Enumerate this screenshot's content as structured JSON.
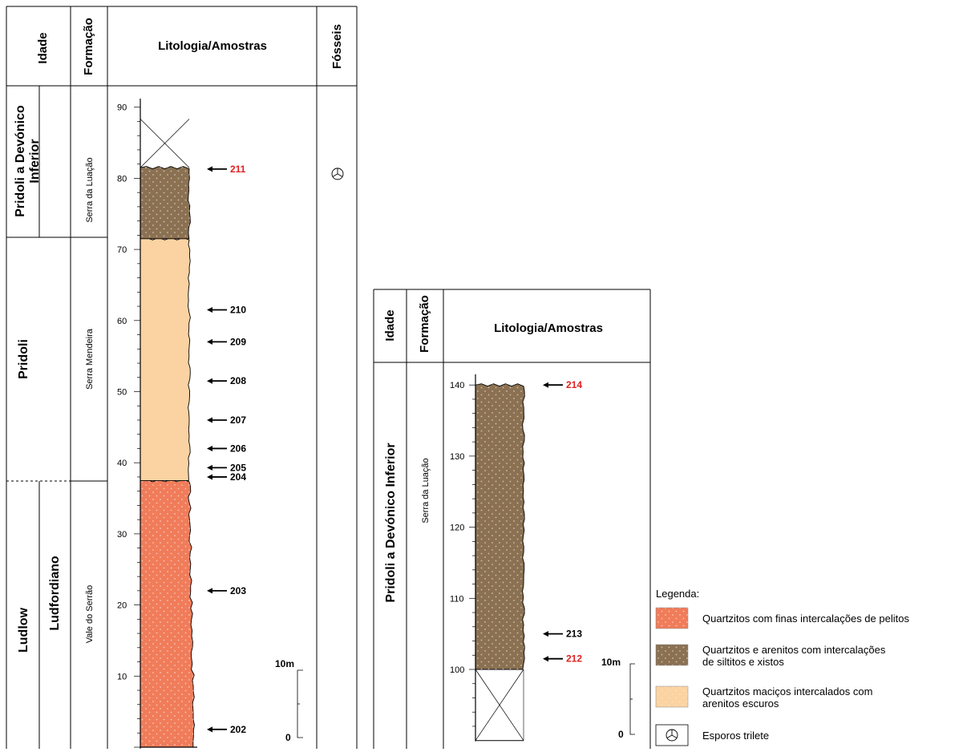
{
  "colors": {
    "quartzite_pelite": "#f07c5a",
    "quartzite_siltite": "#8b7152",
    "quartzite_massive": "#fbd3a2",
    "sample_black": "#000000",
    "sample_red": "#e02020"
  },
  "left_column": {
    "headers": {
      "idade": "Idade",
      "formacao": "Formação",
      "litologia": "Litologia/Amostras",
      "fosseis": "Fósseis"
    },
    "ages": [
      {
        "label": "Pridoli a Devónico Inferior",
        "from": 71.5,
        "to": 92
      },
      {
        "label": "Pridoli",
        "from": 37.5,
        "to": 71.5
      },
      {
        "label": "Ludlow",
        "from": -3,
        "to": 37.5,
        "sub": "Ludfordiano"
      }
    ],
    "formations": [
      {
        "label": "Serra da Luação",
        "from": 71.5,
        "to": 92
      },
      {
        "label": "Serra Mendeira",
        "from": 37.5,
        "to": 71.5
      },
      {
        "label": "Vale do Serrão",
        "from": -3,
        "to": 37.5
      }
    ],
    "layers": [
      {
        "lith": "quartzite_pelite",
        "from": 0,
        "to": 37.5
      },
      {
        "lith": "quartzite_massive",
        "from": 37.5,
        "to": 71.5
      },
      {
        "lith": "quartzite_siltite",
        "from": 71.5,
        "to": 81.5
      }
    ],
    "no_exposure": {
      "from": 81.5,
      "to": 88
    },
    "ticks": [
      10,
      20,
      30,
      40,
      50,
      60,
      70,
      80,
      90
    ],
    "samples": [
      {
        "id": "202",
        "m": 2.5,
        "color": "black"
      },
      {
        "id": "203",
        "m": 22,
        "color": "black"
      },
      {
        "id": "204",
        "m": 38,
        "color": "black"
      },
      {
        "id": "205",
        "m": 39.3,
        "color": "black"
      },
      {
        "id": "206",
        "m": 42,
        "color": "black"
      },
      {
        "id": "207",
        "m": 46,
        "color": "black"
      },
      {
        "id": "208",
        "m": 51.5,
        "color": "black"
      },
      {
        "id": "209",
        "m": 57,
        "color": "black"
      },
      {
        "id": "210",
        "m": 61.5,
        "color": "black"
      },
      {
        "id": "211",
        "m": 81.3,
        "color": "red"
      }
    ],
    "fossil_at": 81.3,
    "scale": {
      "top_label": "10m",
      "bottom_label": "0"
    }
  },
  "right_column": {
    "headers": {
      "idade": "Idade",
      "formacao": "Formação",
      "litologia": "Litologia/Amostras"
    },
    "age": "Pridoli a Devónico Inferior",
    "formation": "Serra da Luação",
    "layers": [
      {
        "lith": "quartzite_siltite",
        "from": 100,
        "to": 140
      }
    ],
    "no_exposure": {
      "from": 90,
      "to": 100
    },
    "ticks": [
      100,
      110,
      120,
      130,
      140
    ],
    "samples": [
      {
        "id": "212",
        "m": 101.5,
        "color": "red"
      },
      {
        "id": "213",
        "m": 105,
        "color": "black"
      },
      {
        "id": "214",
        "m": 140,
        "color": "red"
      }
    ],
    "scale": {
      "top_label": "10m",
      "bottom_label": "0"
    }
  },
  "legend": {
    "title": "Legenda:",
    "items": [
      {
        "key": "quartzite_pelite",
        "lines": [
          "Quartzitos com finas intercalações de pelitos"
        ]
      },
      {
        "key": "quartzite_siltite",
        "lines": [
          "Quartzitos e arenitos com  intercalações",
          "de siltitos e xistos"
        ]
      },
      {
        "key": "quartzite_massive",
        "lines": [
          "Quartzitos maciços intercalados com",
          "arenitos escuros"
        ]
      },
      {
        "key": "spores",
        "lines": [
          "Esporos trilete"
        ]
      }
    ]
  }
}
